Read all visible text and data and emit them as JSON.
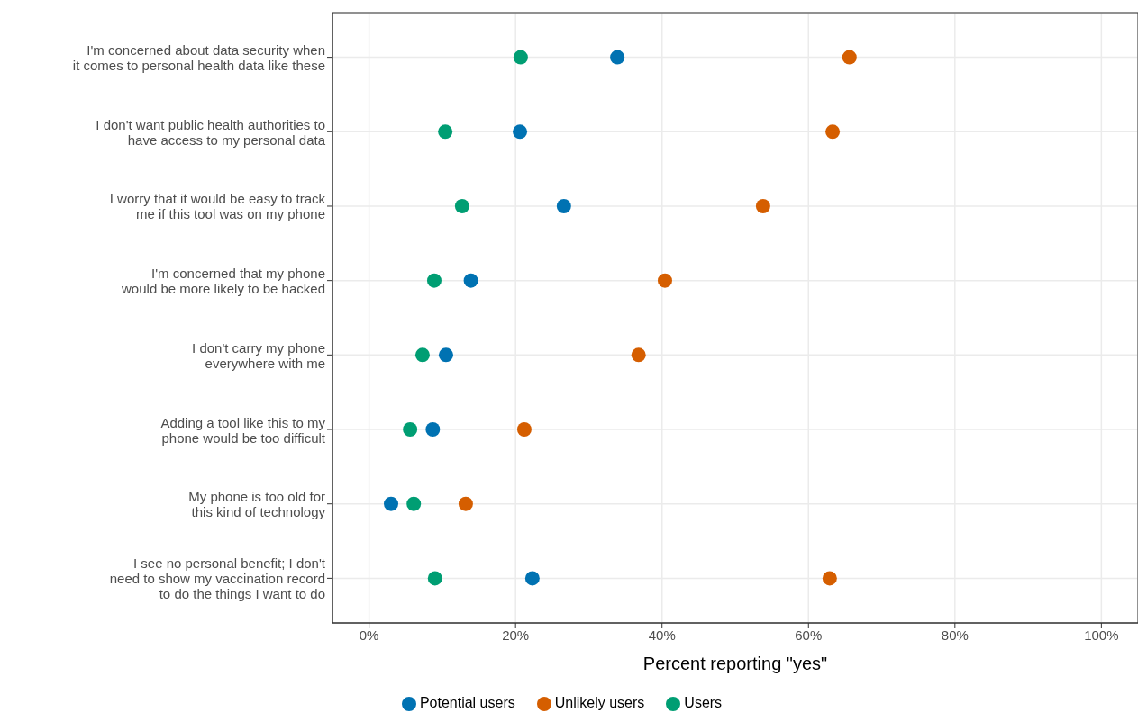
{
  "chart_data": {
    "type": "scatter",
    "orientation": "horizontal",
    "xlabel": "Percent reporting \"yes\"",
    "categories": [
      "I'm concerned about data security when\nit comes to personal health data like these",
      "I don't want public health authorities to\nhave access to my personal data",
      "I worry that it would be easy to track\nme if this tool was on my phone",
      "I'm concerned that my phone\nwould be more likely to be hacked",
      "I don't carry my phone\neverywhere with me",
      "Adding a tool like this to my\nphone would be too difficult",
      "My phone is too old for\nthis kind of technology",
      "I see no personal benefit; I don't\nneed to show my vaccination record\nto do the things I want to do"
    ],
    "series": [
      {
        "name": "Unlikely users",
        "color": "#d55e00",
        "values": [
          65.6,
          63.3,
          53.8,
          40.4,
          36.8,
          21.2,
          13.2,
          62.9
        ]
      },
      {
        "name": "Potential users",
        "color": "#0072b2",
        "values": [
          33.9,
          20.6,
          26.6,
          13.9,
          10.5,
          8.7,
          3.0,
          22.3
        ]
      },
      {
        "name": "Users",
        "color": "#009e73",
        "values": [
          20.7,
          10.4,
          12.7,
          8.9,
          7.3,
          5.6,
          6.1,
          9.0
        ]
      }
    ],
    "xlim": [
      -5,
      105
    ],
    "xticks": [
      {
        "value": 0,
        "label": "0%"
      },
      {
        "value": 20,
        "label": "20%"
      },
      {
        "value": 40,
        "label": "40%"
      },
      {
        "value": 60,
        "label": "60%"
      },
      {
        "value": 80,
        "label": "80%"
      },
      {
        "value": 100,
        "label": "100%"
      }
    ],
    "grid": true,
    "legend": "bottom",
    "marker": "circle"
  }
}
